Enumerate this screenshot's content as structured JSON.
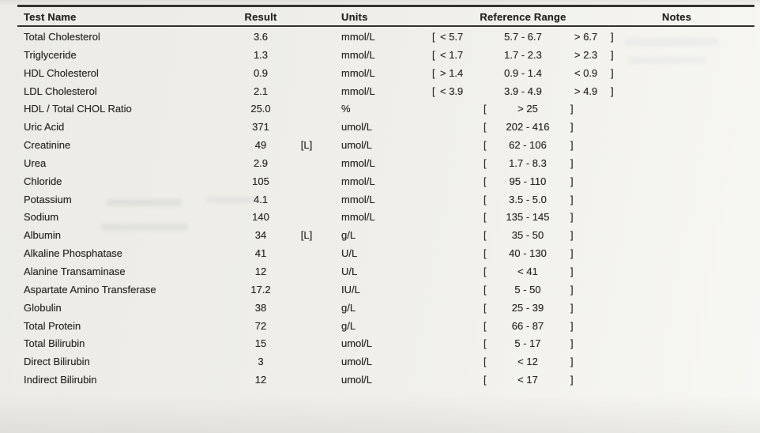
{
  "report": {
    "columns": {
      "test_name": "Test Name",
      "result": "Result",
      "units": "Units",
      "reference_range": "Reference Range",
      "notes": "Notes"
    },
    "symbols": {
      "bracket_open": "[",
      "bracket_close": "]"
    },
    "colors": {
      "text": "#2e2d2a",
      "line": "#35332f",
      "paper": "#f0efeb"
    },
    "rows": [
      {
        "name": "Total Cholesterol",
        "result": "3.6",
        "flag": "",
        "units": "mmol/L",
        "ref": {
          "low": "< 5.7",
          "mid": "5.7 - 6.7",
          "high": "> 6.7"
        },
        "notes": ""
      },
      {
        "name": "Triglyceride",
        "result": "1.3",
        "flag": "",
        "units": "mmol/L",
        "ref": {
          "low": "< 1.7",
          "mid": "1.7 - 2.3",
          "high": "> 2.3"
        },
        "notes": ""
      },
      {
        "name": "HDL Cholesterol",
        "result": "0.9",
        "flag": "",
        "units": "mmol/L",
        "ref": {
          "low": "> 1.4",
          "mid": "0.9 - 1.4",
          "high": "< 0.9"
        },
        "notes": ""
      },
      {
        "name": "LDL Cholesterol",
        "result": "2.1",
        "flag": "",
        "units": "mmol/L",
        "ref": {
          "low": "< 3.9",
          "mid": "3.9 - 4.9",
          "high": "> 4.9"
        },
        "notes": ""
      },
      {
        "name": "HDL / Total CHOL Ratio",
        "result": "25.0",
        "flag": "",
        "units": "%",
        "ref": {
          "low": "",
          "mid": "> 25",
          "high": ""
        },
        "notes": ""
      },
      {
        "name": "Uric Acid",
        "result": "371",
        "flag": "",
        "units": "umol/L",
        "ref": {
          "low": "",
          "mid": "202 - 416",
          "high": ""
        },
        "notes": ""
      },
      {
        "name": "Creatinine",
        "result": "49",
        "flag": "[L]",
        "units": "umol/L",
        "ref": {
          "low": "",
          "mid": "62 - 106",
          "high": ""
        },
        "notes": ""
      },
      {
        "name": "Urea",
        "result": "2.9",
        "flag": "",
        "units": "mmol/L",
        "ref": {
          "low": "",
          "mid": "1.7 - 8.3",
          "high": ""
        },
        "notes": ""
      },
      {
        "name": "Chloride",
        "result": "105",
        "flag": "",
        "units": "mmol/L",
        "ref": {
          "low": "",
          "mid": "95 - 110",
          "high": ""
        },
        "notes": ""
      },
      {
        "name": "Potassium",
        "result": "4.1",
        "flag": "",
        "units": "mmol/L",
        "ref": {
          "low": "",
          "mid": "3.5 - 5.0",
          "high": ""
        },
        "notes": ""
      },
      {
        "name": "Sodium",
        "result": "140",
        "flag": "",
        "units": "mmol/L",
        "ref": {
          "low": "",
          "mid": "135 - 145",
          "high": ""
        },
        "notes": ""
      },
      {
        "name": "Albumin",
        "result": "34",
        "flag": "[L]",
        "units": "g/L",
        "ref": {
          "low": "",
          "mid": "35 - 50",
          "high": ""
        },
        "notes": ""
      },
      {
        "name": "Alkaline Phosphatase",
        "result": "41",
        "flag": "",
        "units": "U/L",
        "ref": {
          "low": "",
          "mid": "40 - 130",
          "high": ""
        },
        "notes": ""
      },
      {
        "name": "Alanine Transaminase",
        "result": "12",
        "flag": "",
        "units": "U/L",
        "ref": {
          "low": "",
          "mid": "< 41",
          "high": ""
        },
        "notes": ""
      },
      {
        "name": "Aspartate Amino Transferase",
        "result": "17.2",
        "flag": "",
        "units": "IU/L",
        "ref": {
          "low": "",
          "mid": "5 - 50",
          "high": ""
        },
        "notes": ""
      },
      {
        "name": "Globulin",
        "result": "38",
        "flag": "",
        "units": "g/L",
        "ref": {
          "low": "",
          "mid": "25 - 39",
          "high": ""
        },
        "notes": ""
      },
      {
        "name": "Total Protein",
        "result": "72",
        "flag": "",
        "units": "g/L",
        "ref": {
          "low": "",
          "mid": "66 - 87",
          "high": ""
        },
        "notes": ""
      },
      {
        "name": "Total Bilirubin",
        "result": "15",
        "flag": "",
        "units": "umol/L",
        "ref": {
          "low": "",
          "mid": "5 - 17",
          "high": ""
        },
        "notes": ""
      },
      {
        "name": "Direct Bilirubin",
        "result": "3",
        "flag": "",
        "units": "umol/L",
        "ref": {
          "low": "",
          "mid": "< 12",
          "high": ""
        },
        "notes": ""
      },
      {
        "name": "Indirect Bilirubin",
        "result": "12",
        "flag": "",
        "units": "umol/L",
        "ref": {
          "low": "",
          "mid": "< 17",
          "high": ""
        },
        "notes": ""
      }
    ]
  }
}
